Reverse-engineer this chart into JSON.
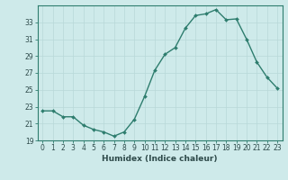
{
  "x": [
    0,
    1,
    2,
    3,
    4,
    5,
    6,
    7,
    8,
    9,
    10,
    11,
    12,
    13,
    14,
    15,
    16,
    17,
    18,
    19,
    20,
    21,
    22,
    23
  ],
  "y": [
    22.5,
    22.5,
    21.8,
    21.8,
    20.8,
    20.3,
    20.0,
    19.5,
    20.0,
    21.5,
    24.2,
    27.3,
    29.2,
    30.0,
    32.3,
    33.8,
    34.0,
    34.5,
    33.3,
    33.4,
    31.0,
    28.3,
    26.5,
    25.2
  ],
  "line_color": "#2e7d6e",
  "marker": "D",
  "marker_size": 2.0,
  "bg_color": "#ceeaea",
  "grid_color": "#b8d8d8",
  "grid_color_minor": "#d0e8e8",
  "xlabel": "Humidex (Indice chaleur)",
  "ylim": [
    19,
    35
  ],
  "xlim": [
    -0.5,
    23.5
  ],
  "yticks": [
    19,
    21,
    23,
    25,
    27,
    29,
    31,
    33
  ],
  "xticks": [
    0,
    1,
    2,
    3,
    4,
    5,
    6,
    7,
    8,
    9,
    10,
    11,
    12,
    13,
    14,
    15,
    16,
    17,
    18,
    19,
    20,
    21,
    22,
    23
  ],
  "font_color": "#2e4a4a",
  "axis_color": "#2e7d6e",
  "label_fontsize": 6.5,
  "tick_fontsize": 5.5
}
